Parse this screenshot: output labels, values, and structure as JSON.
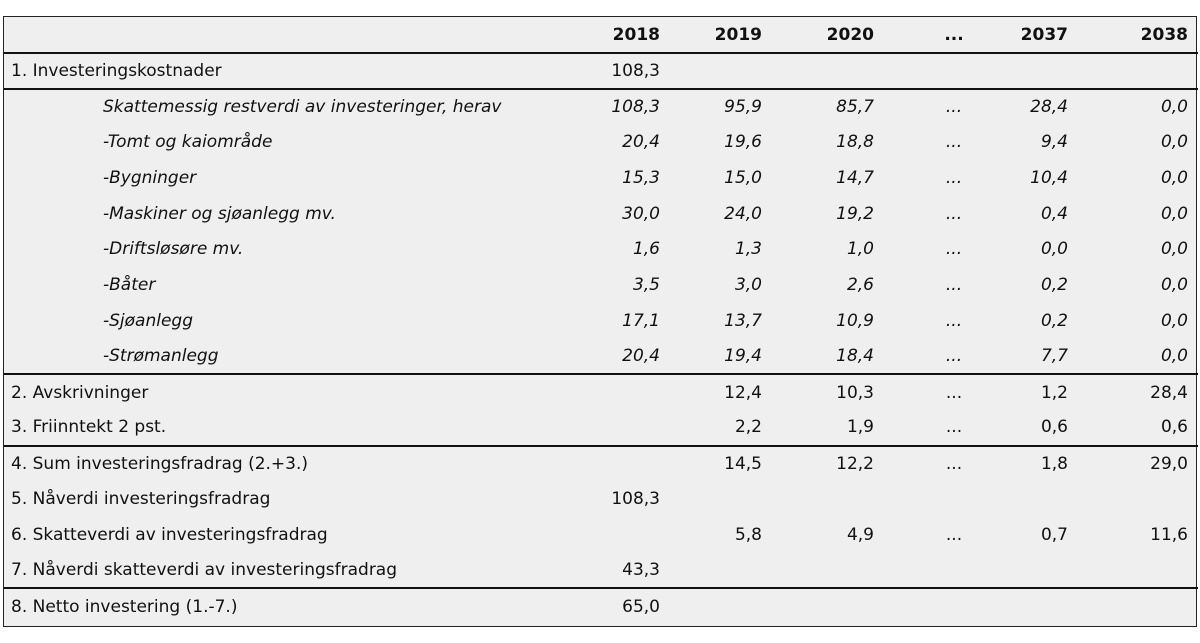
{
  "table": {
    "headers": [
      "",
      "2018",
      "2019",
      "2020",
      "...",
      "2037",
      "2038"
    ],
    "rows": [
      {
        "label": "1. Investeringskostnader",
        "values": [
          "108,3",
          "",
          "",
          "",
          "",
          ""
        ],
        "sub": false,
        "italic": false,
        "sep": true
      },
      {
        "label": "Skattemessig restverdi av investeringer, herav",
        "values": [
          "108,3",
          "95,9",
          "85,7",
          "...",
          "28,4",
          "0,0"
        ],
        "sub": true,
        "italic": true,
        "sep": true
      },
      {
        "label": "-Tomt og kaiområde",
        "values": [
          "20,4",
          "19,6",
          "18,8",
          "...",
          "9,4",
          "0,0"
        ],
        "sub": true,
        "italic": true,
        "sep": false
      },
      {
        "label": "-Bygninger",
        "values": [
          "15,3",
          "15,0",
          "14,7",
          "...",
          "10,4",
          "0,0"
        ],
        "sub": true,
        "italic": true,
        "sep": false
      },
      {
        "label": "-Maskiner og sjøanlegg mv.",
        "values": [
          "30,0",
          "24,0",
          "19,2",
          "...",
          "0,4",
          "0,0"
        ],
        "sub": true,
        "italic": true,
        "sep": false
      },
      {
        "label": "-Driftsløsøre mv.",
        "values": [
          "1,6",
          "1,3",
          "1,0",
          "...",
          "0,0",
          "0,0"
        ],
        "sub": true,
        "italic": true,
        "sep": false
      },
      {
        "label": "-Båter",
        "values": [
          "3,5",
          "3,0",
          "2,6",
          "...",
          "0,2",
          "0,0"
        ],
        "sub": true,
        "italic": true,
        "sep": false
      },
      {
        "label": "-Sjøanlegg",
        "values": [
          "17,1",
          "13,7",
          "10,9",
          "...",
          "0,2",
          "0,0"
        ],
        "sub": true,
        "italic": true,
        "sep": false
      },
      {
        "label": "-Strømanlegg",
        "values": [
          "20,4",
          "19,4",
          "18,4",
          "...",
          "7,7",
          "0,0"
        ],
        "sub": true,
        "italic": true,
        "sep": false
      },
      {
        "label": "2. Avskrivninger",
        "values": [
          "",
          "12,4",
          "10,3",
          "...",
          "1,2",
          "28,4"
        ],
        "sub": false,
        "italic": false,
        "sep": true
      },
      {
        "label": "3. Friinntekt 2 pst.",
        "values": [
          "",
          "2,2",
          "1,9",
          "...",
          "0,6",
          "0,6"
        ],
        "sub": false,
        "italic": false,
        "sep": false
      },
      {
        "label": "4. Sum investeringsfradrag (2.+3.)",
        "values": [
          "",
          "14,5",
          "12,2",
          "...",
          "1,8",
          "29,0"
        ],
        "sub": false,
        "italic": false,
        "sep": true
      },
      {
        "label": "5. Nåverdi investeringsfradrag",
        "values": [
          "108,3",
          "",
          "",
          "",
          "",
          ""
        ],
        "sub": false,
        "italic": false,
        "sep": false
      },
      {
        "label": "6. Skatteverdi av investeringsfradrag",
        "values": [
          "",
          "5,8",
          "4,9",
          "...",
          "0,7",
          "11,6"
        ],
        "sub": false,
        "italic": false,
        "sep": false
      },
      {
        "label": "7. Nåverdi skatteverdi av investeringsfradrag",
        "values": [
          "43,3",
          "",
          "",
          "",
          "",
          ""
        ],
        "sub": false,
        "italic": false,
        "sep": false
      },
      {
        "label": "8. Netto investering (1.-7.)",
        "values": [
          "65,0",
          "",
          "",
          "",
          "",
          ""
        ],
        "sub": false,
        "italic": false,
        "sep": true
      }
    ]
  }
}
